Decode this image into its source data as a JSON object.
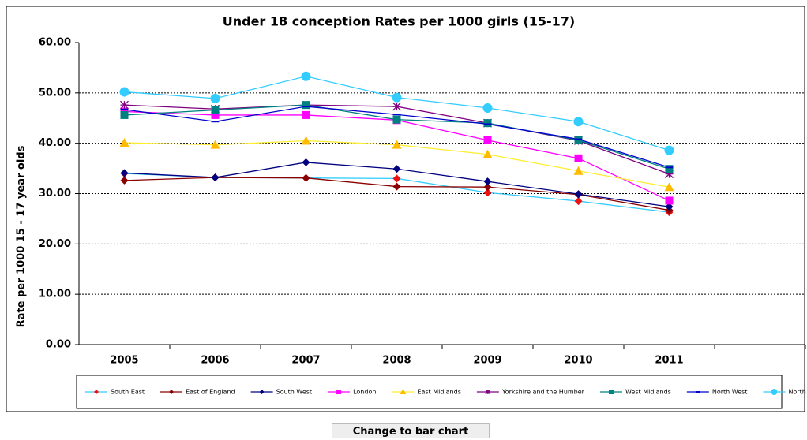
{
  "chart_data": {
    "type": "line",
    "title": "Under 18 conception Rates per 1000 girls  (15-17)",
    "y_label": "Rate per 1000 15 - 17 year olds",
    "categories": [
      "2005",
      "2006",
      "2007",
      "2008",
      "2009",
      "2010",
      "2011",
      null
    ],
    "ylim": [
      0,
      60
    ],
    "yticks": [
      {
        "value": 0,
        "label": "0.00"
      },
      {
        "value": 10,
        "label": "10.00"
      },
      {
        "value": 20,
        "label": "20.00"
      },
      {
        "value": 30,
        "label": "30.00"
      },
      {
        "value": 40,
        "label": "40.00"
      },
      {
        "value": 50,
        "label": "50.00"
      },
      {
        "value": 60,
        "label": "60.00"
      }
    ],
    "grid": true,
    "legend": "bottom",
    "series": [
      {
        "name": "South East",
        "color": "#33ccff",
        "marker_color": "#ee1111",
        "marker": "diamond",
        "values": [
          34.0,
          33.2,
          33.1,
          33.0,
          30.2,
          28.5,
          26.3,
          null
        ]
      },
      {
        "name": "East of England",
        "color": "#8b0000",
        "marker_color": "#8b0000",
        "marker": "diamond",
        "values": [
          32.6,
          33.2,
          33.1,
          31.4,
          31.3,
          29.8,
          26.7,
          null
        ]
      },
      {
        "name": "South West",
        "color": "#000080",
        "marker_color": "#000080",
        "marker": "diamond",
        "values": [
          34.1,
          33.2,
          36.2,
          34.9,
          32.4,
          29.9,
          27.4,
          null
        ]
      },
      {
        "name": "London",
        "color": "#ff00ff",
        "marker_color": "#ff00ff",
        "marker": "square",
        "values": [
          46.3,
          45.6,
          45.6,
          44.6,
          40.6,
          37.0,
          28.6,
          null
        ]
      },
      {
        "name": "East Midlands",
        "color": "#ffee33",
        "marker_color": "#ffbb00",
        "marker": "triangle",
        "values": [
          40.1,
          39.7,
          40.5,
          39.7,
          37.8,
          34.5,
          31.3,
          null
        ]
      },
      {
        "name": "Yorkshire and the Humber",
        "color": "#800080",
        "marker_color": "#800080",
        "marker": "star",
        "values": [
          47.6,
          46.8,
          47.6,
          47.3,
          44.0,
          40.5,
          33.9,
          null
        ]
      },
      {
        "name": "West Midlands",
        "color": "#008080",
        "marker_color": "#008080",
        "marker": "square",
        "values": [
          45.6,
          46.6,
          47.6,
          44.7,
          44.0,
          40.6,
          34.9,
          null
        ]
      },
      {
        "name": "North West",
        "color": "#0000cc",
        "marker_color": "#0000cc",
        "marker": "dash",
        "values": [
          46.7,
          44.3,
          47.3,
          45.7,
          43.8,
          40.8,
          35.2,
          null
        ]
      },
      {
        "name": "North East",
        "color": "#33ccff",
        "marker_color": "#33ccff",
        "marker": "circle",
        "values": [
          50.2,
          48.9,
          53.3,
          49.1,
          47.0,
          44.3,
          38.6,
          null
        ]
      }
    ]
  },
  "button": {
    "label": "Change to bar chart"
  }
}
